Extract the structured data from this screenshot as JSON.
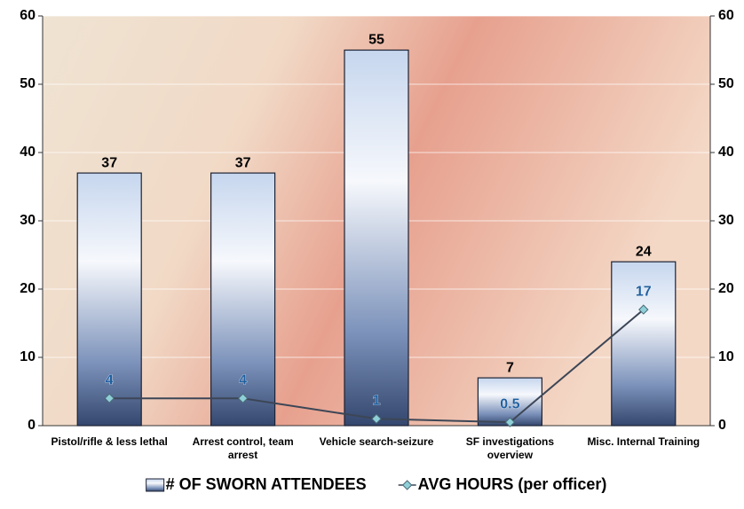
{
  "chart_data": {
    "type": "bar",
    "categories": [
      "Pistol/rifle & less lethal",
      "Arrest control, team arrest",
      "Vehicle search-seizure",
      "SF investigations overview",
      "Misc. Internal Training"
    ],
    "series": [
      {
        "name": "# OF SWORN ATTENDEES",
        "type": "bar",
        "color": "#3f5f95",
        "values": [
          37,
          37,
          55,
          7,
          24
        ]
      },
      {
        "name": "AVG HOURS (per officer)",
        "type": "line",
        "axis": "y2",
        "color": "#3c4656",
        "marker_color": "#8fd0d8",
        "label_color": "#1f5f9f",
        "values": [
          4,
          4,
          1,
          0.5,
          17
        ]
      }
    ],
    "ylim": [
      0,
      60
    ],
    "yticks": [
      0,
      10,
      20,
      30,
      40,
      50,
      60
    ],
    "y2lim": [
      0,
      60
    ],
    "y2ticks": [
      0,
      10,
      20,
      30,
      40,
      50,
      60
    ],
    "grid": true,
    "legend": "bottom"
  }
}
